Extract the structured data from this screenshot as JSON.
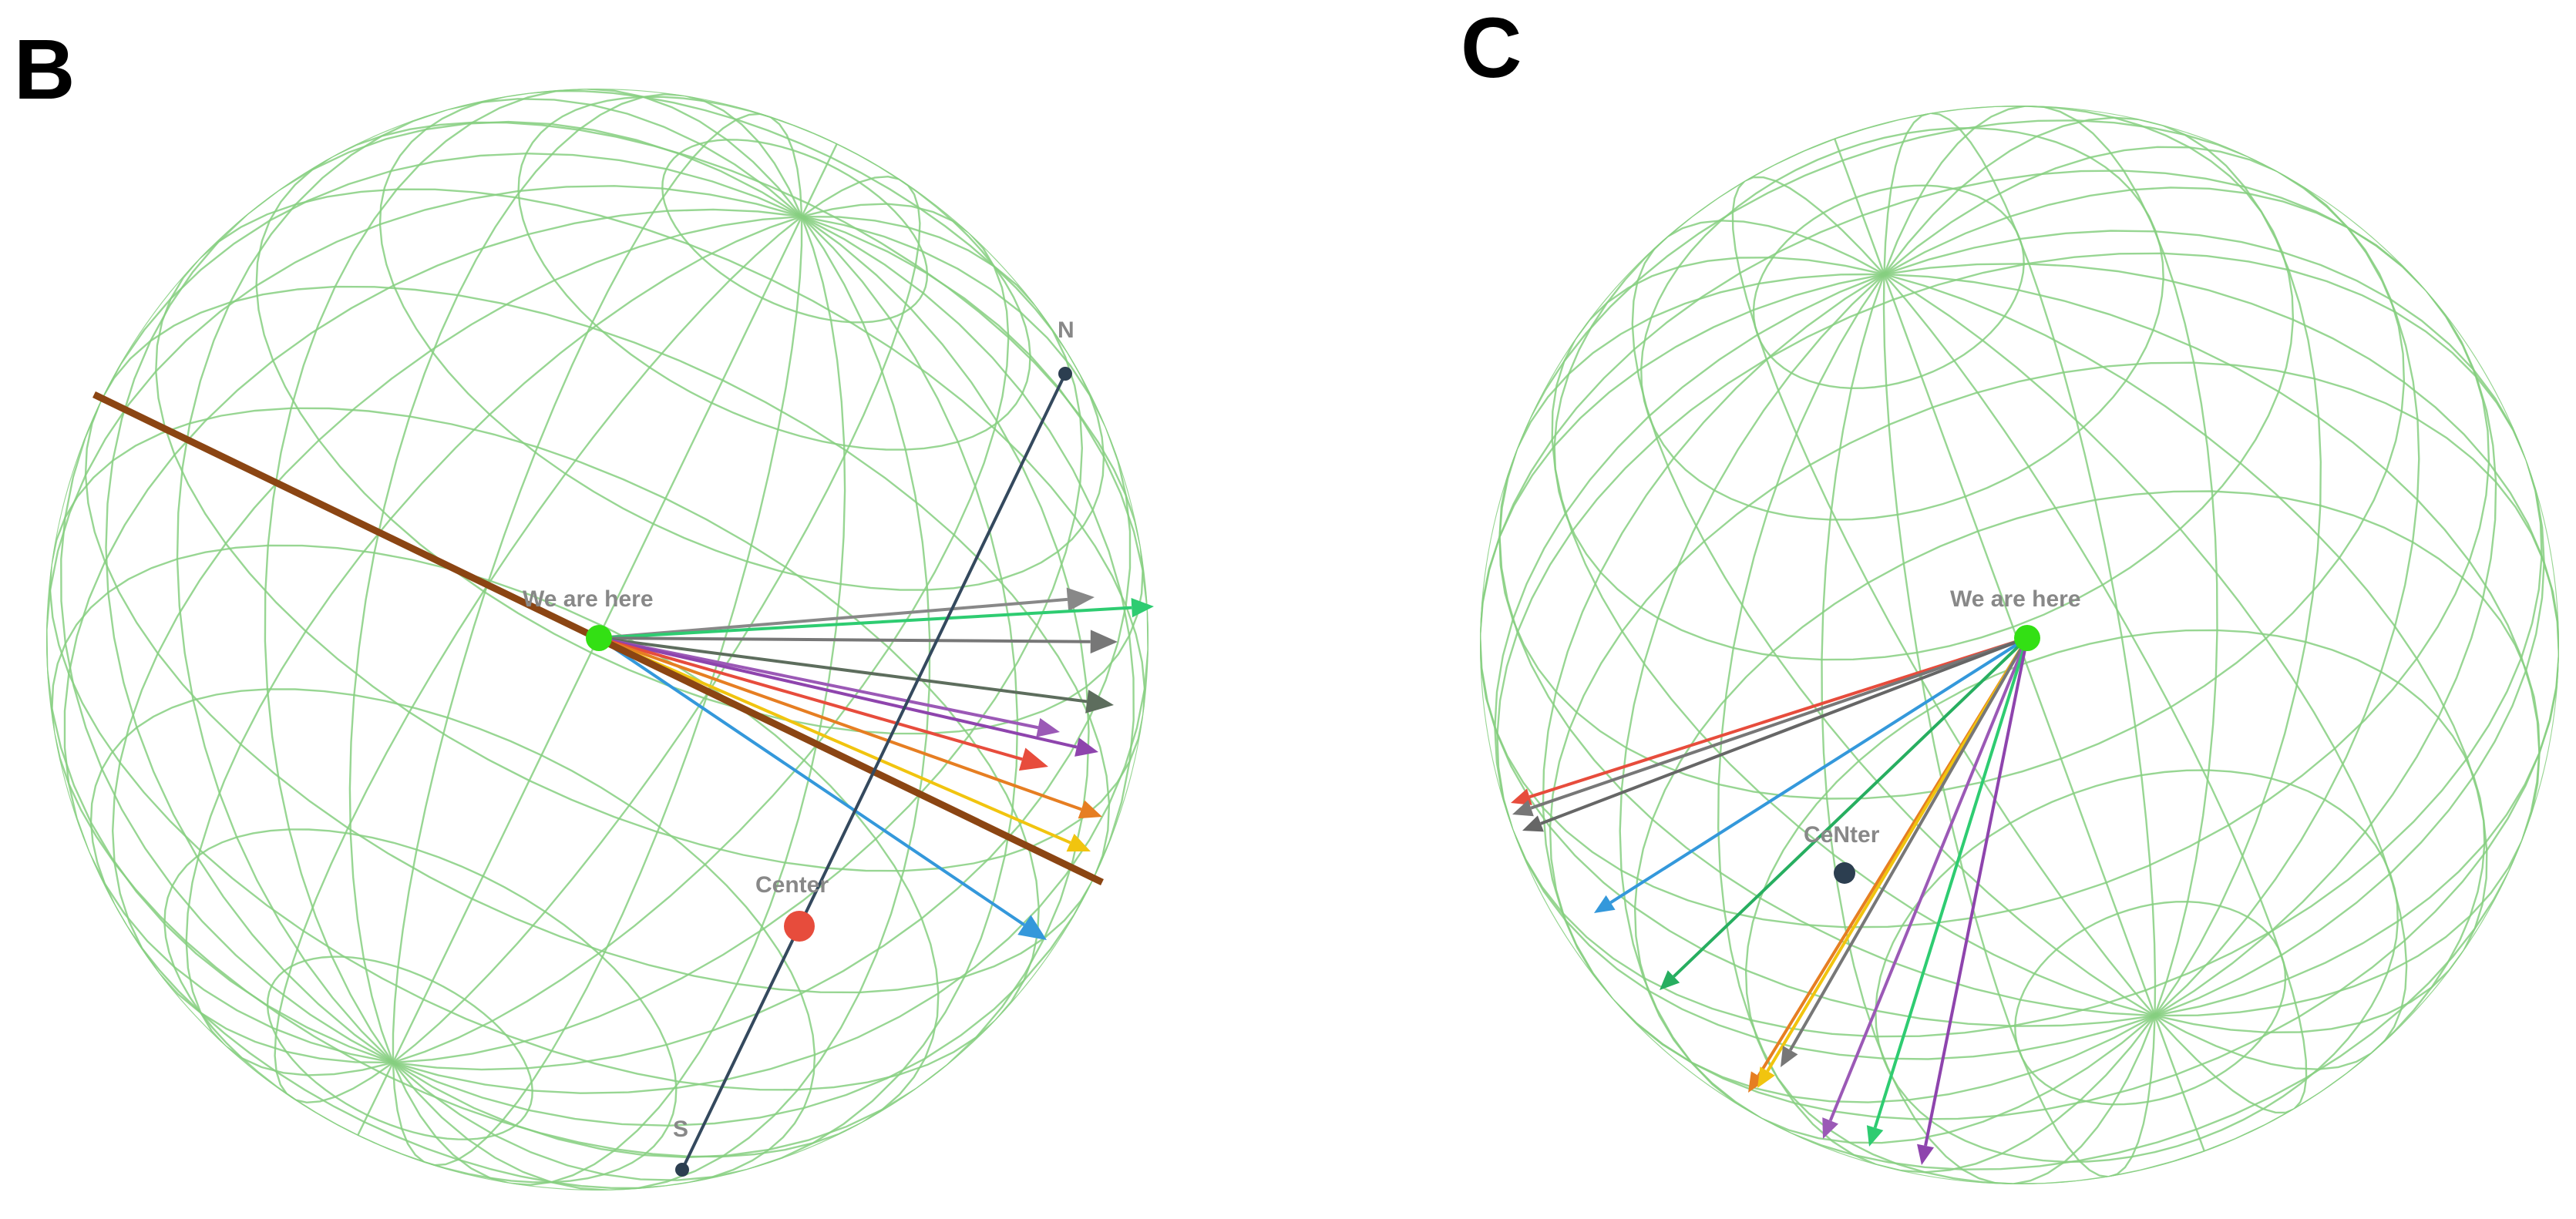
{
  "colors": {
    "grid": "#86cf80",
    "here": "#33e014",
    "center_b": "#e74c3c",
    "center_c": "#2c3e50",
    "axis": "#34495e",
    "axis_pole": "#2c3e50",
    "plane_line": "#8b4513",
    "label": "#888888"
  },
  "panels": [
    {
      "id": "B",
      "letter": "B",
      "here_label": "We are here",
      "center_label": "Center",
      "north_label": "N",
      "south_label": "S",
      "vectors": [
        {
          "color": "#888888"
        },
        {
          "color": "#2ecc71"
        },
        {
          "color": "#777777"
        },
        {
          "color": "#5d6d5d"
        },
        {
          "color": "#9b59b6"
        },
        {
          "color": "#8e44ad"
        },
        {
          "color": "#e74c3c"
        },
        {
          "color": "#e67e22"
        },
        {
          "color": "#f1c40f"
        },
        {
          "color": "#3498db"
        }
      ]
    },
    {
      "id": "C",
      "letter": "C",
      "here_label": "We are here",
      "center_label": "CeNter",
      "vectors": [
        {
          "color": "#e74c3c"
        },
        {
          "color": "#777777"
        },
        {
          "color": "#666666"
        },
        {
          "color": "#3498db"
        },
        {
          "color": "#27ae60"
        },
        {
          "color": "#e67e22"
        },
        {
          "color": "#f1c40f"
        },
        {
          "color": "#777777"
        },
        {
          "color": "#9b59b6"
        },
        {
          "color": "#2ecc71"
        },
        {
          "color": "#8e44ad"
        }
      ]
    }
  ]
}
